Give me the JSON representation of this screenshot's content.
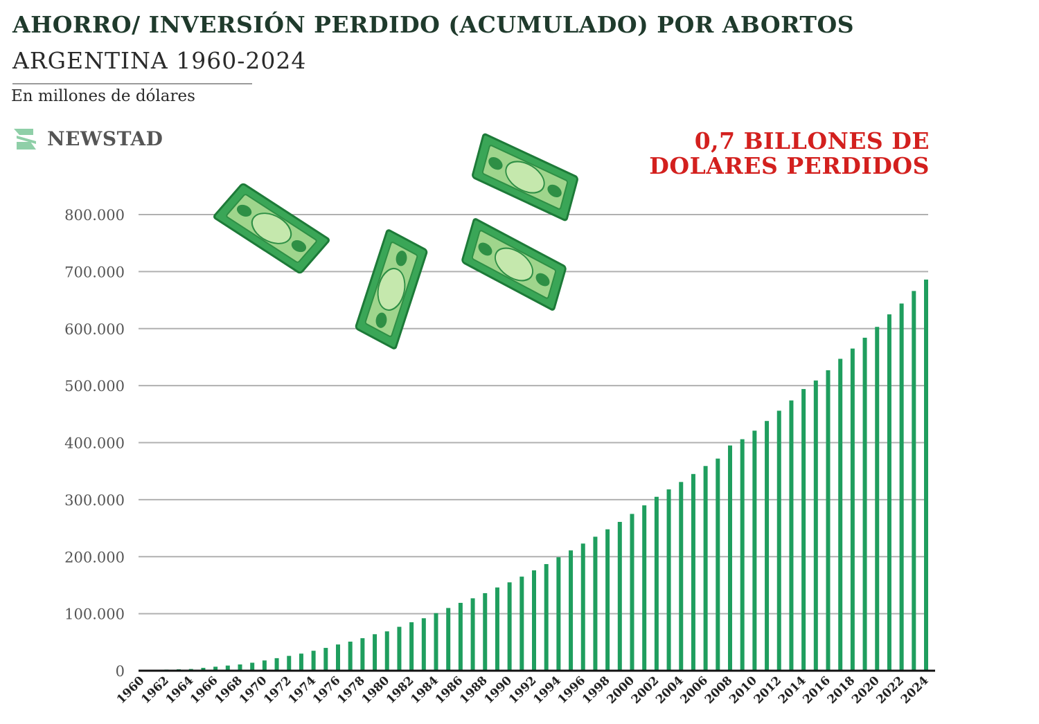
{
  "title": "AHORRO/ INVERSIÓN PERDIDO (ACUMULADO) POR ABORTOS",
  "subtitle": "ARGENTINA 1960-2024",
  "units": "En millones de dólares",
  "brand": "NEWSTAD",
  "callout": {
    "line1": "0,7 BILLONES DE",
    "line2": "DOLARES PERDIDOS"
  },
  "colors": {
    "bar": "#1f9e5e",
    "title": "#1f3a2c",
    "callout": "#d3201e",
    "grid": "#b0b0b0"
  },
  "decorations": [
    "money-bill-icon",
    "money-bill-icon",
    "money-bill-icon",
    "money-bill-icon"
  ],
  "chart_data": {
    "type": "bar",
    "ylim": [
      0,
      800000
    ],
    "yticks": [
      0,
      100000,
      200000,
      300000,
      400000,
      500000,
      600000,
      700000,
      800000
    ],
    "ytick_labels": [
      "0",
      "100.000",
      "200.000",
      "300.000",
      "400.000",
      "500.000",
      "600.000",
      "700.000",
      "800.000"
    ],
    "xtick_labels": [
      "1960",
      "1962",
      "1964",
      "1966",
      "1968",
      "1970",
      "1972",
      "1974",
      "1976",
      "1978",
      "1980",
      "1982",
      "1984",
      "1986",
      "1988",
      "1990",
      "1992",
      "1994",
      "1996",
      "1998",
      "2000",
      "2002",
      "2004",
      "2006",
      "2008",
      "2010",
      "2012",
      "2014",
      "2016",
      "2018",
      "2020",
      "2022",
      "2024"
    ],
    "categories": [
      "1960",
      "1961",
      "1962",
      "1963",
      "1964",
      "1965",
      "1966",
      "1967",
      "1968",
      "1969",
      "1970",
      "1971",
      "1972",
      "1973",
      "1974",
      "1975",
      "1976",
      "1977",
      "1978",
      "1979",
      "1980",
      "1981",
      "1982",
      "1983",
      "1984",
      "1985",
      "1986",
      "1987",
      "1988",
      "1989",
      "1990",
      "1991",
      "1992",
      "1993",
      "1994",
      "1995",
      "1996",
      "1997",
      "1998",
      "1999",
      "2000",
      "2001",
      "2002",
      "2003",
      "2004",
      "2005",
      "2006",
      "2007",
      "2008",
      "2009",
      "2010",
      "2011",
      "2012",
      "2013",
      "2014",
      "2015",
      "2016",
      "2017",
      "2018",
      "2019",
      "2020",
      "2021",
      "2022",
      "2023",
      "2024"
    ],
    "values": [
      1000,
      1500,
      2000,
      2500,
      3000,
      5000,
      7000,
      9000,
      11000,
      14000,
      18000,
      22000,
      26000,
      30000,
      35000,
      40000,
      46000,
      51000,
      57000,
      64000,
      69000,
      77000,
      85000,
      92000,
      101000,
      110000,
      119000,
      127000,
      136000,
      146000,
      155000,
      165000,
      176000,
      187000,
      199000,
      211000,
      223000,
      235000,
      248000,
      261000,
      275000,
      290000,
      305000,
      318000,
      331000,
      345000,
      359000,
      372000,
      395000,
      406000,
      421000,
      438000,
      456000,
      474000,
      494000,
      509000,
      527000,
      547000,
      565000,
      584000,
      603000,
      625000,
      644000,
      666000,
      686000
    ],
    "grid": true,
    "xlabel": "",
    "ylabel": ""
  }
}
